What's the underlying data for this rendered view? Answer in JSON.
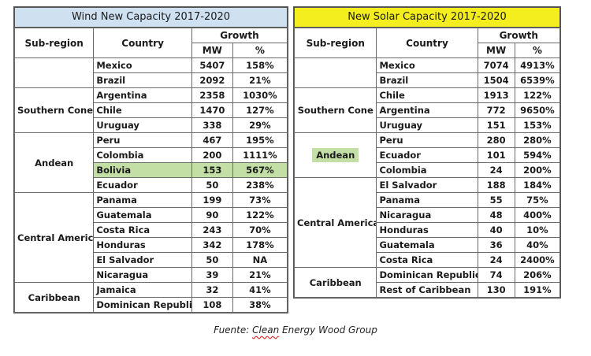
{
  "wind": {
    "title": "Wind New Capacity 2017-2020",
    "headers": {
      "subregion": "Sub-region",
      "country": "Country",
      "growth": "Growth",
      "mw": "MW",
      "pct": "%"
    },
    "groups": [
      {
        "region": "",
        "rows": [
          {
            "country": "Mexico",
            "mw": "5407",
            "pct": "158%"
          },
          {
            "country": "Brazil",
            "mw": "2092",
            "pct": "21%"
          }
        ]
      },
      {
        "region": "Southern Cone",
        "rows": [
          {
            "country": "Argentina",
            "mw": "2358",
            "pct": "1030%"
          },
          {
            "country": "Chile",
            "mw": "1470",
            "pct": "127%"
          },
          {
            "country": "Uruguay",
            "mw": "338",
            "pct": "29%"
          }
        ]
      },
      {
        "region": "Andean",
        "rows": [
          {
            "country": "Peru",
            "mw": "467",
            "pct": "195%"
          },
          {
            "country": "Colombia",
            "mw": "200",
            "pct": "1111%"
          },
          {
            "country": "Bolivia",
            "mw": "153",
            "pct": "567%",
            "highlight": true
          },
          {
            "country": "Ecuador",
            "mw": "50",
            "pct": "238%"
          }
        ]
      },
      {
        "region": "Central America",
        "rows": [
          {
            "country": "Panama",
            "mw": "199",
            "pct": "73%"
          },
          {
            "country": "Guatemala",
            "mw": "90",
            "pct": "122%"
          },
          {
            "country": "Costa Rica",
            "mw": "243",
            "pct": "70%"
          },
          {
            "country": "Honduras",
            "mw": "342",
            "pct": "178%"
          },
          {
            "country": "El Salvador",
            "mw": "50",
            "pct": "NA"
          },
          {
            "country": "Nicaragua",
            "mw": "39",
            "pct": "21%"
          }
        ]
      },
      {
        "region": "Caribbean",
        "rows": [
          {
            "country": "Jamaica",
            "mw": "32",
            "pct": "41%"
          },
          {
            "country": "Dominican Republic",
            "mw": "108",
            "pct": "38%"
          }
        ]
      }
    ]
  },
  "solar": {
    "title": "New Solar Capacity 2017-2020",
    "headers": {
      "subregion": "Sub-region",
      "country": "Country",
      "growth": "Growth",
      "mw": "MW",
      "pct": "%"
    },
    "groups": [
      {
        "region": "",
        "rows": [
          {
            "country": "Mexico",
            "mw": "7074",
            "pct": "4913%"
          },
          {
            "country": "Brazil",
            "mw": "1504",
            "pct": "6539%"
          }
        ]
      },
      {
        "region": "Southern Cone",
        "rows": [
          {
            "country": "Chile",
            "mw": "1913",
            "pct": "122%"
          },
          {
            "country": "Argentina",
            "mw": "772",
            "pct": "9650%"
          },
          {
            "country": "Uruguay",
            "mw": "151",
            "pct": "153%"
          }
        ]
      },
      {
        "region": "Andean",
        "regionHighlight": true,
        "rows": [
          {
            "country": "Peru",
            "mw": "280",
            "pct": "280%"
          },
          {
            "country": "Ecuador",
            "mw": "101",
            "pct": "594%"
          },
          {
            "country": "Colombia",
            "mw": "24",
            "pct": "200%"
          }
        ]
      },
      {
        "region": "Central America",
        "rows": [
          {
            "country": "El Salvador",
            "mw": "188",
            "pct": "184%"
          },
          {
            "country": "Panama",
            "mw": "55",
            "pct": "75%"
          },
          {
            "country": "Nicaragua",
            "mw": "48",
            "pct": "400%"
          },
          {
            "country": "Honduras",
            "mw": "40",
            "pct": "10%"
          },
          {
            "country": "Guatemala",
            "mw": "36",
            "pct": "40%"
          },
          {
            "country": "Costa Rica",
            "mw": "24",
            "pct": "2400%"
          }
        ]
      },
      {
        "region": "Caribbean",
        "rows": [
          {
            "country": "Dominican Republic",
            "mw": "74",
            "pct": "206%"
          },
          {
            "country": "Rest of Caribbean",
            "mw": "130",
            "pct": "191%"
          }
        ]
      }
    ]
  },
  "caption": {
    "prefix": "Fuente:",
    "brand": "Clean",
    "suffix": "Energy Wood Group"
  }
}
